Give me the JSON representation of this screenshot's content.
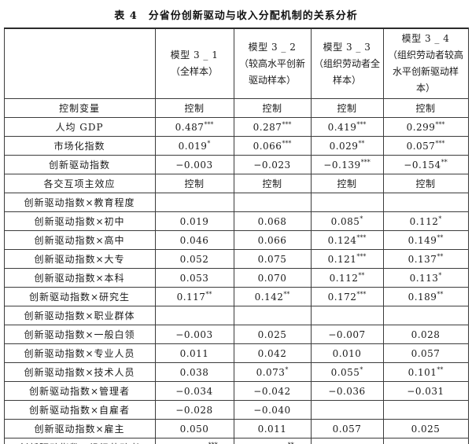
{
  "title": "表 4　分省份创新驱动与收入分配机制的关系分析",
  "table": {
    "columns": [
      {
        "name": "",
        "subtitle": ""
      },
      {
        "name": "模型 3 _ 1",
        "subtitle": "（全样本）"
      },
      {
        "name": "模型 3 _ 2",
        "subtitle": "（较高水平创新驱动样本）"
      },
      {
        "name": "模型 3 _ 3",
        "subtitle": "（组织劳动者全样本）"
      },
      {
        "name": "模型 3 _ 4",
        "subtitle": "（组织劳动者较高水平创新驱动样本）"
      }
    ],
    "rows": [
      {
        "label": "控制变量",
        "values": [
          "控制",
          "控制",
          "控制",
          "控制"
        ]
      },
      {
        "label": "人均 GDP",
        "values": [
          "0.487***",
          "0.287***",
          "0.419***",
          "0.299***"
        ]
      },
      {
        "label": "市场化指数",
        "values": [
          "0.019*",
          "0.066***",
          "0.029**",
          "0.057***"
        ]
      },
      {
        "label": "创新驱动指数",
        "values": [
          "−0.003",
          "−0.023",
          "−0.139***",
          "−0.154**"
        ]
      },
      {
        "label": "各交互项主效应",
        "values": [
          "控制",
          "控制",
          "控制",
          "控制"
        ]
      },
      {
        "label": "创新驱动指数×教育程度",
        "values": [
          "",
          "",
          "",
          ""
        ]
      },
      {
        "label": "创新驱动指数×初中",
        "values": [
          "0.019",
          "0.068",
          "0.085*",
          "0.112*"
        ]
      },
      {
        "label": "创新驱动指数×高中",
        "values": [
          "0.046",
          "0.066",
          "0.124***",
          "0.149**"
        ]
      },
      {
        "label": "创新驱动指数×大专",
        "values": [
          "0.052",
          "0.075",
          "0.121***",
          "0.137**"
        ]
      },
      {
        "label": "创新驱动指数×本科",
        "values": [
          "0.053",
          "0.070",
          "0.112**",
          "0.113*"
        ]
      },
      {
        "label": "创新驱动指数×研究生",
        "values": [
          "0.117**",
          "0.142**",
          "0.172***",
          "0.189**"
        ]
      },
      {
        "label": "创新驱动指数×职业群体",
        "values": [
          "",
          "",
          "",
          ""
        ]
      },
      {
        "label": "创新驱动指数×一般白领",
        "values": [
          "−0.003",
          "0.025",
          "−0.007",
          "0.028"
        ]
      },
      {
        "label": "创新驱动指数×专业人员",
        "values": [
          "0.011",
          "0.042",
          "0.010",
          "0.057"
        ]
      },
      {
        "label": "创新驱动指数×技术人员",
        "values": [
          "0.038",
          "0.073*",
          "0.055*",
          "0.101**"
        ]
      },
      {
        "label": "创新驱动指数×管理者",
        "values": [
          "−0.034",
          "−0.042",
          "−0.036",
          "−0.031"
        ]
      },
      {
        "label": "创新驱动指数×自雇者",
        "values": [
          "−0.028",
          "−0.040",
          "",
          ""
        ]
      },
      {
        "label": "创新驱动指数×雇主",
        "values": [
          "0.050",
          "0.011",
          "0.057",
          "0.025"
        ]
      },
      {
        "label": "创新驱动指数×组织劳动者",
        "values": [
          "−0.061***",
          "−0.068**",
          "",
          ""
        ]
      }
    ]
  }
}
